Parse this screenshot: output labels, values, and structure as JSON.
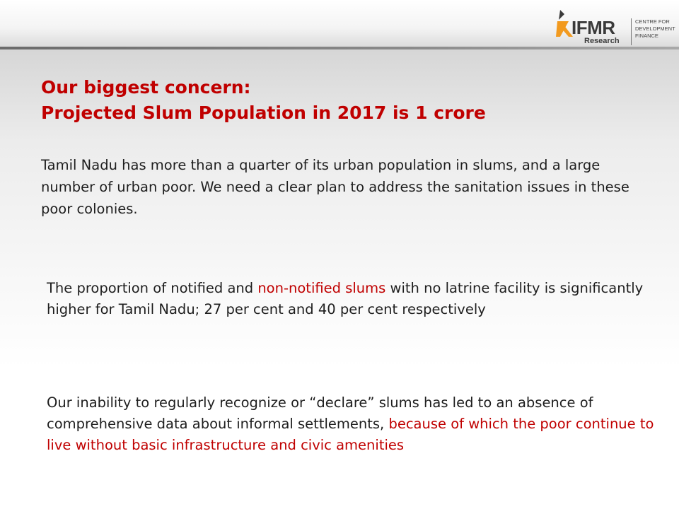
{
  "header": {
    "logo": {
      "brand": "IFMR",
      "sub": "Research",
      "centre_lines": [
        "CENTRE FOR",
        "DEVELOPMENT",
        "FINANCE"
      ]
    }
  },
  "slide": {
    "title_line1": "Our biggest concern:",
    "title_line2": "Projected Slum Population in 2017 is 1 crore",
    "paragraph1": "Tamil Nadu has more than a quarter of its urban population in slums, and a large number of urban poor. We need a clear plan to address the sanitation issues in these poor colonies.",
    "paragraph2_part1": "The proportion of notified and ",
    "paragraph2_highlight": "non-notified slums",
    "paragraph2_part2": " with no latrine facility is significantly higher for Tamil Nadu; 27 per cent and 40 per cent respectively",
    "paragraph3_part1": "Our inability to regularly recognize or “declare” slums has led to an absence of comprehensive data about informal settlements, ",
    "paragraph3_highlight": "because of which the poor continue to live without basic infrastructure and civic amenities"
  },
  "colors": {
    "accent_red": "#c00000",
    "logo_orange": "#f29a1f",
    "text_dark": "#1e1e1e"
  }
}
